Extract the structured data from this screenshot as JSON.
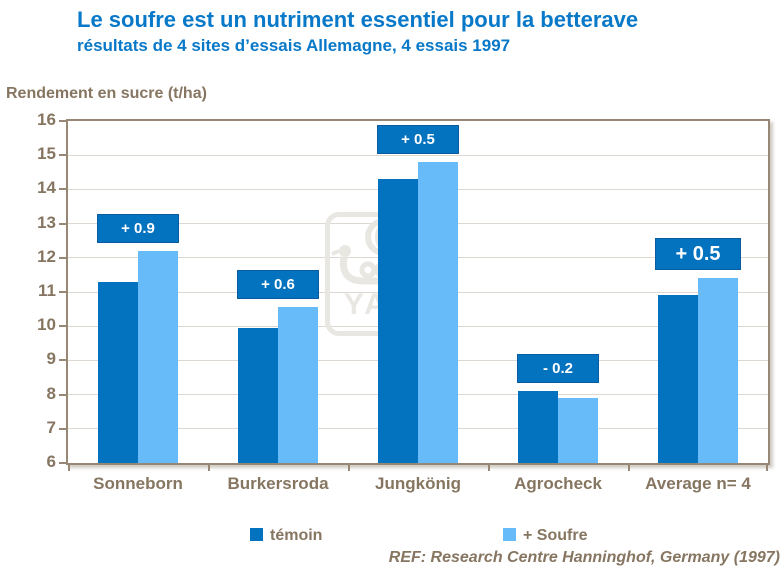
{
  "header": {
    "title": "Le soufre est un nutriment essentiel pour la betterave",
    "subtitle": "résultats de 4 sites d’essais Allemagne, 4 essais 1997"
  },
  "chart": {
    "axis_title": "Rendement en sucre (t/ha)"
  },
  "chart_data": {
    "type": "bar",
    "title": "Le soufre est un nutriment essentiel pour la betterave",
    "subtitle": "résultats de 4 sites d’essais Allemagne, 4 essais 1997",
    "ylabel": "Rendement en sucre (t/ha)",
    "xlabel": "",
    "ylim": [
      6,
      16
    ],
    "ytick_step": 1,
    "grid": true,
    "legend_position": "bottom",
    "categories": [
      "Sonneborn",
      "Burkersroda",
      "Jungkönig",
      "Agrocheck",
      "Average n= 4"
    ],
    "series": [
      {
        "name": "témoin",
        "color": "#0372BF",
        "values": [
          11.3,
          9.95,
          14.3,
          8.1,
          10.9
        ]
      },
      {
        "name": "+ Soufre",
        "color": "#66BBF8",
        "values": [
          12.2,
          10.55,
          14.8,
          7.9,
          11.4
        ]
      }
    ],
    "diff_labels": [
      {
        "text": "+ 0.9",
        "emphasized": false
      },
      {
        "text": "+ 0.6",
        "emphasized": false
      },
      {
        "text": "+ 0.5",
        "emphasized": false
      },
      {
        "text": "- 0.2",
        "emphasized": false
      },
      {
        "text": "+ 0.5",
        "emphasized": true
      }
    ]
  },
  "legend": {
    "items": [
      {
        "label": "témoin",
        "color": "#0372BF"
      },
      {
        "label": "+ Soufre",
        "color": "#66BBF8"
      }
    ]
  },
  "watermark": {
    "text": "YARA"
  },
  "footer": {
    "ref": "REF: Research Centre Hanninghof,  Germany (1997)"
  },
  "colors": {
    "title_blue": "#0878C8",
    "dark_bar": "#0372BF",
    "light_bar": "#66BBF8",
    "text_brown": "#867661",
    "gridline": "#DDD9D2",
    "frame": "#978876",
    "diff_box_fill": "#0372BF",
    "diff_box_border": "#0A5C9E",
    "watermark_gray": "#E9E7E2"
  }
}
